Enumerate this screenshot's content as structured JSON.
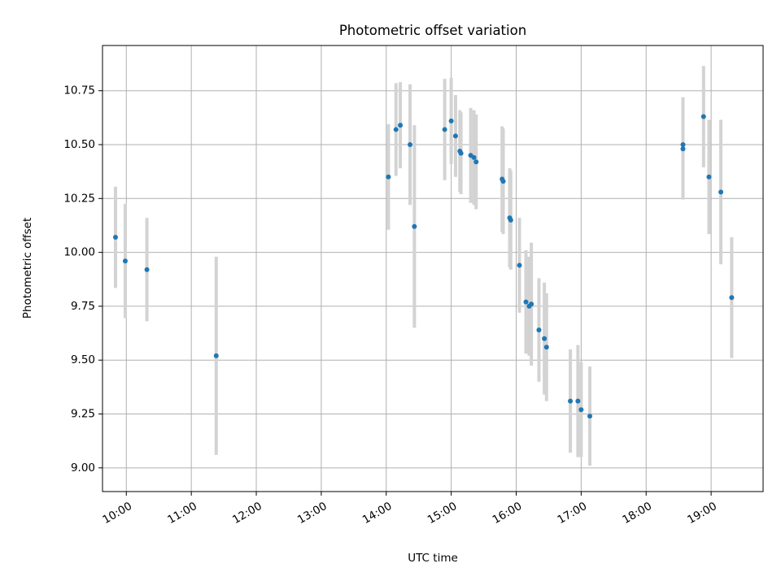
{
  "chart_data": {
    "type": "scatter",
    "title": "Photometric offset variation",
    "xlabel": "UTC time",
    "ylabel": "Photometric offset",
    "xlim": [
      "09:38",
      "19:48"
    ],
    "ylim": [
      8.89,
      10.96
    ],
    "x_ticks": [
      "10:00",
      "11:00",
      "12:00",
      "13:00",
      "14:00",
      "15:00",
      "16:00",
      "17:00",
      "18:00",
      "19:00"
    ],
    "y_ticks": [
      "9.00",
      "9.25",
      "9.50",
      "9.75",
      "10.00",
      "10.25",
      "10.50",
      "10.75"
    ],
    "grid": true,
    "point_color": "#1f77b4",
    "errorbar_color": "#d3d3d3",
    "series": [
      {
        "points": [
          {
            "time": "09:50",
            "y": 10.07,
            "yerr": 0.235
          },
          {
            "time": "09:59",
            "y": 9.96,
            "yerr": 0.265
          },
          {
            "time": "10:19",
            "y": 9.92,
            "yerr": 0.24
          },
          {
            "time": "11:23",
            "y": 9.52,
            "yerr": 0.46
          },
          {
            "time": "14:02",
            "y": 10.35,
            "yerr": 0.245
          },
          {
            "time": "14:09",
            "y": 10.57,
            "yerr": 0.215
          },
          {
            "time": "14:13",
            "y": 10.59,
            "yerr": 0.2
          },
          {
            "time": "14:22",
            "y": 10.5,
            "yerr": 0.28
          },
          {
            "time": "14:26",
            "y": 10.12,
            "yerr": 0.47
          },
          {
            "time": "14:54",
            "y": 10.57,
            "yerr": 0.235
          },
          {
            "time": "15:00",
            "y": 10.61,
            "yerr": 0.2
          },
          {
            "time": "15:04",
            "y": 10.54,
            "yerr": 0.19
          },
          {
            "time": "15:08",
            "y": 10.47,
            "yerr": 0.19
          },
          {
            "time": "15:09",
            "y": 10.46,
            "yerr": 0.19
          },
          {
            "time": "15:18",
            "y": 10.45,
            "yerr": 0.22
          },
          {
            "time": "15:21",
            "y": 10.44,
            "yerr": 0.22
          },
          {
            "time": "15:23",
            "y": 10.42,
            "yerr": 0.22
          },
          {
            "time": "15:47",
            "y": 10.34,
            "yerr": 0.245
          },
          {
            "time": "15:48",
            "y": 10.33,
            "yerr": 0.245
          },
          {
            "time": "15:54",
            "y": 10.16,
            "yerr": 0.23
          },
          {
            "time": "15:55",
            "y": 10.15,
            "yerr": 0.23
          },
          {
            "time": "16:03",
            "y": 9.94,
            "yerr": 0.22
          },
          {
            "time": "16:09",
            "y": 9.77,
            "yerr": 0.24
          },
          {
            "time": "16:12",
            "y": 9.75,
            "yerr": 0.23
          },
          {
            "time": "16:14",
            "y": 9.76,
            "yerr": 0.285
          },
          {
            "time": "16:21",
            "y": 9.64,
            "yerr": 0.24
          },
          {
            "time": "16:26",
            "y": 9.6,
            "yerr": 0.26
          },
          {
            "time": "16:28",
            "y": 9.56,
            "yerr": 0.25
          },
          {
            "time": "16:50",
            "y": 9.31,
            "yerr": 0.24
          },
          {
            "time": "16:57",
            "y": 9.31,
            "yerr": 0.26
          },
          {
            "time": "17:00",
            "y": 9.27,
            "yerr": 0.22
          },
          {
            "time": "17:08",
            "y": 9.24,
            "yerr": 0.23
          },
          {
            "time": "18:34",
            "y": 10.48,
            "yerr": 0.235
          },
          {
            "time": "18:34",
            "y": 10.5,
            "yerr": 0.22
          },
          {
            "time": "18:53",
            "y": 10.63,
            "yerr": 0.235
          },
          {
            "time": "18:58",
            "y": 10.35,
            "yerr": 0.265
          },
          {
            "time": "19:09",
            "y": 10.28,
            "yerr": 0.335
          },
          {
            "time": "19:19",
            "y": 9.79,
            "yerr": 0.28
          }
        ]
      }
    ]
  }
}
